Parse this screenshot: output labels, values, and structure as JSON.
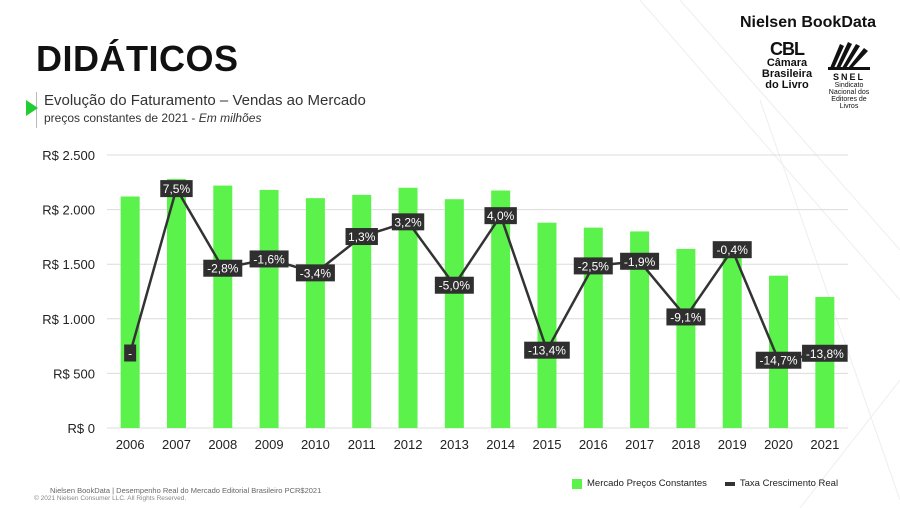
{
  "header": {
    "brand": "Nielsen BookData",
    "title": "DIDÁTICOS",
    "subtitle": "Evolução do Faturamento – Vendas ao Mercado",
    "subtitle2_main": "preços constantes de 2021 - ",
    "subtitle2_em": "Em milhões"
  },
  "logos": {
    "cbl_mark": "CBL",
    "cbl_line1": "Câmara",
    "cbl_line2": "Brasileira",
    "cbl_line3": "do Livro",
    "snel_word": "SNEL",
    "snel_small": "Sindicato Nacional dos Editores de Livros"
  },
  "footer": {
    "source": "Nielsen BookData | Desempenho Real do Mercado Editorial Brasileiro PCR$2021",
    "copyright": "© 2021 Nielsen Consumer LLC. All Rights Reserved."
  },
  "colors": {
    "bar": "#5cf24c",
    "line": "#333333",
    "label_bg": "#2f2f2f",
    "label_text": "#ffffff",
    "accent": "#22cc33"
  },
  "chart_data": {
    "type": "bar",
    "categories": [
      "2006",
      "2007",
      "2008",
      "2009",
      "2010",
      "2011",
      "2012",
      "2013",
      "2014",
      "2015",
      "2016",
      "2017",
      "2018",
      "2019",
      "2020",
      "2021"
    ],
    "ylim": [
      0,
      2500
    ],
    "yticks": [
      0,
      500,
      1000,
      1500,
      2000,
      2500
    ],
    "ytick_labels": [
      "R$ 0",
      "R$ 500",
      "R$ 1.000",
      "R$ 1.500",
      "R$ 2.000",
      "R$ 2.500"
    ],
    "grid": true,
    "legend_position": "bottom-right",
    "series": [
      {
        "name": "Mercado Preços Constantes",
        "type": "bar",
        "values": [
          2120,
          2280,
          2220,
          2180,
          2105,
          2135,
          2200,
          2095,
          2175,
          1880,
          1835,
          1800,
          1640,
          1635,
          1395,
          1200
        ]
      },
      {
        "name": "Taxa Crescimento Real",
        "type": "line",
        "labels": [
          "-",
          "7,5%",
          "-2,8%",
          "-1,6%",
          "-3,4%",
          "1,3%",
          "3,2%",
          "-5,0%",
          "4,0%",
          "-13,4%",
          "-2,5%",
          "-1,9%",
          "-9,1%",
          "-0,4%",
          "-14,7%",
          "-13,8%"
        ],
        "values": [
          null,
          7.5,
          -2.8,
          -1.6,
          -3.4,
          1.3,
          3.2,
          -5.0,
          4.0,
          -13.4,
          -2.5,
          -1.9,
          -9.1,
          -0.4,
          -14.7,
          -13.8
        ]
      }
    ]
  }
}
